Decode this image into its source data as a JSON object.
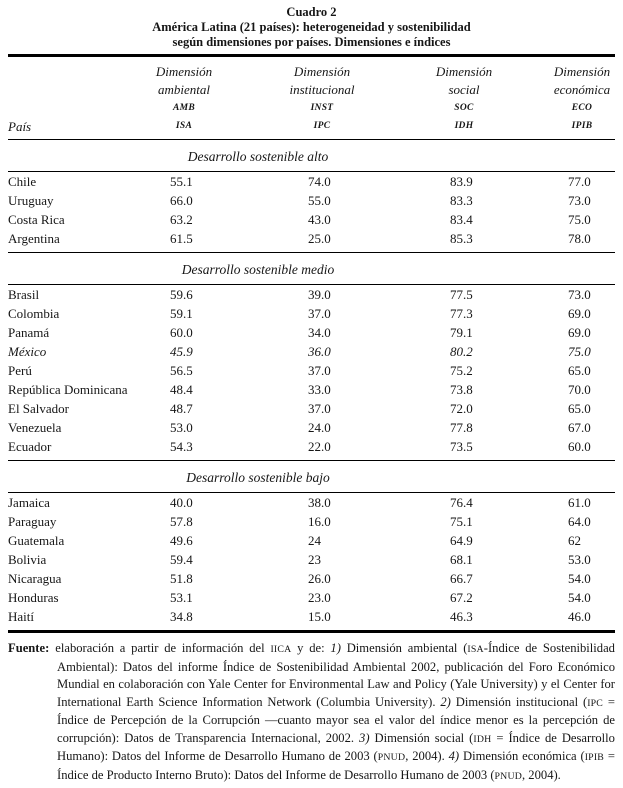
{
  "colors": {
    "background": "#ffffff",
    "text": "#161616",
    "rule": "#000000"
  },
  "title": {
    "line1": "Cuadro 2",
    "line2": "América Latina (21 países): heterogeneidad y sostenibilidad",
    "line3": "según dimensiones por países. Dimensiones e índices"
  },
  "table": {
    "country_header": "País",
    "columns": [
      {
        "line1": "Dimensión",
        "line2": "ambiental",
        "abbr": "AMB",
        "index": "ISA"
      },
      {
        "line1": "Dimensión",
        "line2": "institucional",
        "abbr": "INST",
        "index": "IPC"
      },
      {
        "line1": "Dimensión",
        "line2": "social",
        "abbr": "SOC",
        "index": "IDH"
      },
      {
        "line1": "Dimensión",
        "line2": "económica",
        "abbr": "ECO",
        "index": "IPIB"
      }
    ],
    "sections": [
      {
        "label": "Desarrollo sostenible alto",
        "rows": [
          {
            "country": "Chile",
            "values": [
              "55.1",
              "74.0",
              "83.9",
              "77.0"
            ],
            "italic": false
          },
          {
            "country": "Uruguay",
            "values": [
              "66.0",
              "55.0",
              "83.3",
              "73.0"
            ],
            "italic": false
          },
          {
            "country": "Costa Rica",
            "values": [
              "63.2",
              "43.0",
              "83.4",
              "75.0"
            ],
            "italic": false
          },
          {
            "country": "Argentina",
            "values": [
              "61.5",
              "25.0",
              "85.3",
              "78.0"
            ],
            "italic": false
          }
        ]
      },
      {
        "label": "Desarrollo sostenible medio",
        "rows": [
          {
            "country": "Brasil",
            "values": [
              "59.6",
              "39.0",
              "77.5",
              "73.0"
            ],
            "italic": false
          },
          {
            "country": "Colombia",
            "values": [
              "59.1",
              "37.0",
              "77.3",
              "69.0"
            ],
            "italic": false
          },
          {
            "country": "Panamá",
            "values": [
              "60.0",
              "34.0",
              "79.1",
              "69.0"
            ],
            "italic": false
          },
          {
            "country": "México",
            "values": [
              "45.9",
              "36.0",
              "80.2",
              "75.0"
            ],
            "italic": true
          },
          {
            "country": "Perú",
            "values": [
              "56.5",
              "37.0",
              "75.2",
              "65.0"
            ],
            "italic": false
          },
          {
            "country": "República Dominicana",
            "values": [
              "48.4",
              "33.0",
              "73.8",
              "70.0"
            ],
            "italic": false
          },
          {
            "country": "El Salvador",
            "values": [
              "48.7",
              "37.0",
              "72.0",
              "65.0"
            ],
            "italic": false
          },
          {
            "country": "Venezuela",
            "values": [
              "53.0",
              "24.0",
              "77.8",
              "67.0"
            ],
            "italic": false
          },
          {
            "country": "Ecuador",
            "values": [
              "54.3",
              "22.0",
              "73.5",
              "60.0"
            ],
            "italic": false
          }
        ]
      },
      {
        "label": "Desarrollo sostenible bajo",
        "rows": [
          {
            "country": "Jamaica",
            "values": [
              "40.0",
              "38.0",
              "76.4",
              "61.0"
            ],
            "italic": false
          },
          {
            "country": "Paraguay",
            "values": [
              "57.8",
              "16.0",
              "75.1",
              "64.0"
            ],
            "italic": false
          },
          {
            "country": "Guatemala",
            "values": [
              "49.6",
              "24",
              "64.9",
              "62"
            ],
            "italic": false
          },
          {
            "country": "Bolivia",
            "values": [
              "59.4",
              "23",
              "68.1",
              "53.0"
            ],
            "italic": false
          },
          {
            "country": "Nicaragua",
            "values": [
              "51.8",
              "26.0",
              "66.7",
              "54.0"
            ],
            "italic": false
          },
          {
            "country": "Honduras",
            "values": [
              "53.1",
              "23.0",
              "67.2",
              "54.0"
            ],
            "italic": false
          },
          {
            "country": "Haití",
            "values": [
              "34.8",
              "15.0",
              "46.3",
              "46.0"
            ],
            "italic": false
          }
        ]
      }
    ]
  },
  "source": {
    "label": "Fuente:",
    "segments": [
      {
        "t": "elaboración a partir de información del ",
        "s": "n"
      },
      {
        "t": "IICA",
        "s": "sc"
      },
      {
        "t": " y de: ",
        "s": "n"
      },
      {
        "t": "1)",
        "s": "i"
      },
      {
        "t": " Dimensión ambiental (",
        "s": "n"
      },
      {
        "t": "ISA",
        "s": "sc"
      },
      {
        "t": "-Índice de Sostenibilidad Ambiental): Datos del informe Índice de Sostenibilidad Ambiental 2002, publicación del Foro Económico Mundial en colaboración con Yale Center for Environmental Law and Policy (Yale University) y el Center for International Earth Science Information Network (Columbia University). ",
        "s": "n"
      },
      {
        "t": "2)",
        "s": "i"
      },
      {
        "t": " Dimensión institucional (",
        "s": "n"
      },
      {
        "t": "IPC",
        "s": "sc"
      },
      {
        "t": " = Índice de Percepción de la Corrupción —cuanto mayor sea el valor del índice menor es la percepción de corrupción): Datos de Transparencia Internacional, 2002. ",
        "s": "n"
      },
      {
        "t": "3)",
        "s": "i"
      },
      {
        "t": " Dimensión social (",
        "s": "n"
      },
      {
        "t": "IDH",
        "s": "sc"
      },
      {
        "t": " = Índice de Desarrollo Humano): Datos del Informe de Desarrollo Humano de 2003 (",
        "s": "n"
      },
      {
        "t": "PNUD",
        "s": "sc"
      },
      {
        "t": ", 2004). ",
        "s": "n"
      },
      {
        "t": "4)",
        "s": "i"
      },
      {
        "t": " Dimensión económica (",
        "s": "n"
      },
      {
        "t": "IPIB",
        "s": "sc"
      },
      {
        "t": " = Índice de Producto Interno Bruto): Datos del Informe de Desarrollo Humano de 2003 (",
        "s": "n"
      },
      {
        "t": "PNUD",
        "s": "sc"
      },
      {
        "t": ", 2004).",
        "s": "n"
      }
    ]
  }
}
